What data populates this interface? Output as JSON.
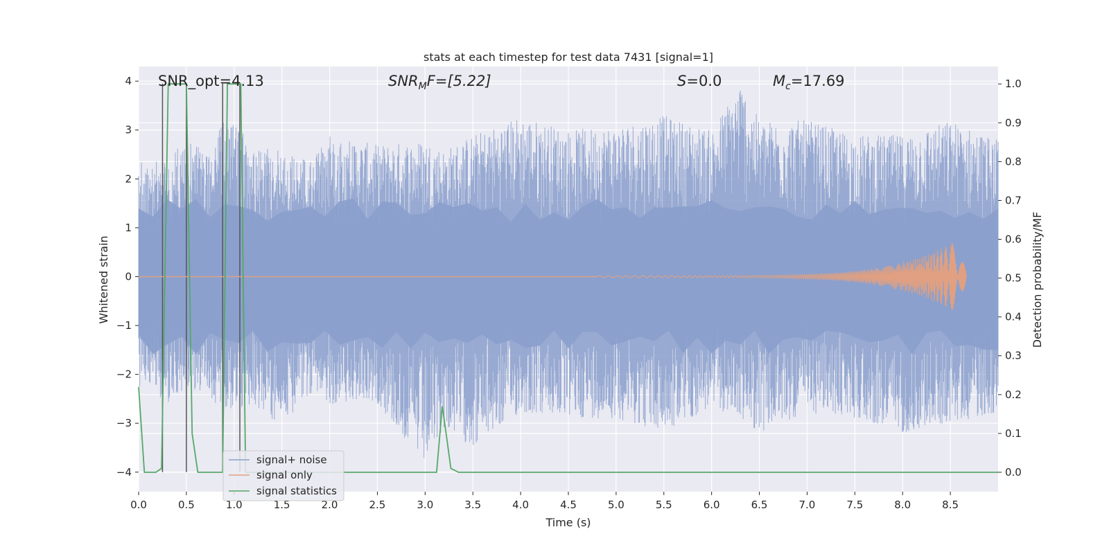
{
  "chart_data": {
    "type": "line",
    "title": "stats at each timestep for test data 7431 [signal=1]",
    "xlabel": "Time (s)",
    "ylabel_left": "Whitened strain",
    "ylabel_right": "Detection probability/MF",
    "xlim": [
      0.0,
      9.0
    ],
    "ylim_left": [
      -4.4,
      4.3
    ],
    "ylim_right": [
      -0.05,
      1.045
    ],
    "x_ticks": [
      0.0,
      0.5,
      1.0,
      1.5,
      2.0,
      2.5,
      3.0,
      3.5,
      4.0,
      4.5,
      5.0,
      5.5,
      6.0,
      6.5,
      7.0,
      7.5,
      8.0,
      8.5
    ],
    "x_tick_labels": [
      "0.0",
      "0.5",
      "1.0",
      "1.5",
      "2.0",
      "2.5",
      "3.0",
      "3.5",
      "4.0",
      "4.5",
      "5.0",
      "5.5",
      "6.0",
      "6.5",
      "7.0",
      "7.5",
      "8.0",
      "8.5"
    ],
    "y_left_ticks": [
      -4,
      -3,
      -2,
      -1,
      0,
      1,
      2,
      3,
      4
    ],
    "y_left_tick_labels": [
      "−4",
      "−3",
      "−2",
      "−1",
      "0",
      "1",
      "2",
      "3",
      "4"
    ],
    "y_right_ticks": [
      0.0,
      0.1,
      0.2,
      0.3,
      0.4,
      0.5,
      0.6,
      0.7,
      0.8,
      0.9,
      1.0
    ],
    "y_right_tick_labels": [
      "0.0",
      "0.1",
      "0.2",
      "0.3",
      "0.4",
      "0.5",
      "0.6",
      "0.7",
      "0.8",
      "0.9",
      "1.0"
    ],
    "grid": true,
    "legend_position": "lower-left",
    "annotations": {
      "snr_opt": "SNR_opt=4.13",
      "snr_mf_main": "SNR",
      "snr_mf_sub": "M",
      "snr_mf_rest": "F=[5.22]",
      "s_main": "S",
      "s_rest": "=0.0",
      "mc_main": "M",
      "mc_sub": "c",
      "mc_rest": "=17.69"
    },
    "series": [
      {
        "name": "signal+ noise",
        "color": "#8a9fcc",
        "description_kind": "whitened strain noise envelope",
        "x": [
          0.0,
          0.1,
          0.2,
          0.3,
          0.5,
          0.7,
          0.9,
          1.0,
          1.2,
          1.5,
          1.8,
          2.0,
          2.5,
          3.0,
          3.2,
          3.5,
          4.0,
          4.5,
          5.0,
          5.5,
          6.0,
          6.3,
          6.5,
          7.0,
          7.5,
          8.0,
          8.5,
          9.0
        ],
        "upper": [
          2.6,
          2.2,
          2.4,
          2.3,
          2.9,
          2.5,
          3.2,
          3.1,
          2.8,
          2.6,
          2.4,
          2.9,
          2.7,
          2.8,
          2.6,
          2.9,
          3.3,
          3.0,
          3.1,
          3.3,
          3.0,
          4.0,
          3.2,
          3.2,
          2.9,
          2.9,
          3.2,
          2.8
        ],
        "lower": [
          -2.3,
          -2.1,
          -2.5,
          -2.6,
          -2.3,
          -2.4,
          -2.8,
          -2.8,
          -2.6,
          -3.1,
          -2.4,
          -2.6,
          -2.6,
          -3.9,
          -3.1,
          -3.5,
          -2.8,
          -2.9,
          -2.9,
          -3.2,
          -2.7,
          -2.9,
          -3.2,
          -2.8,
          -2.9,
          -3.2,
          -3.0,
          -2.8
        ]
      },
      {
        "name": "signal only",
        "color": "#e0a081",
        "description_kind": "chirp",
        "start_x": 4.8,
        "end_x": 8.67,
        "peak_amplitude": 0.85
      },
      {
        "name": "signal statistics",
        "color": "#55a868",
        "axis": "right",
        "x": [
          0.0,
          0.06,
          0.18,
          0.24,
          0.31,
          0.37,
          0.5,
          0.56,
          0.62,
          0.88,
          0.93,
          1.02,
          1.07,
          1.12,
          1.3,
          3.12,
          3.18,
          3.22,
          3.27,
          3.35,
          9.0
        ],
        "y": [
          0.22,
          0.0,
          0.0,
          0.01,
          1.0,
          1.0,
          1.0,
          0.1,
          0.0,
          0.0,
          1.0,
          1.0,
          1.0,
          0.0,
          0.0,
          0.0,
          0.17,
          0.1,
          0.01,
          0.0,
          0.0
        ]
      }
    ],
    "vertical_lines": {
      "color": "#555555",
      "x": [
        0.25,
        0.5,
        0.88,
        1.06
      ],
      "top": [
        3.95,
        3.95,
        3.95,
        3.95
      ],
      "bottom": [
        -4.0,
        -4.0,
        -4.0,
        -4.0
      ]
    }
  }
}
